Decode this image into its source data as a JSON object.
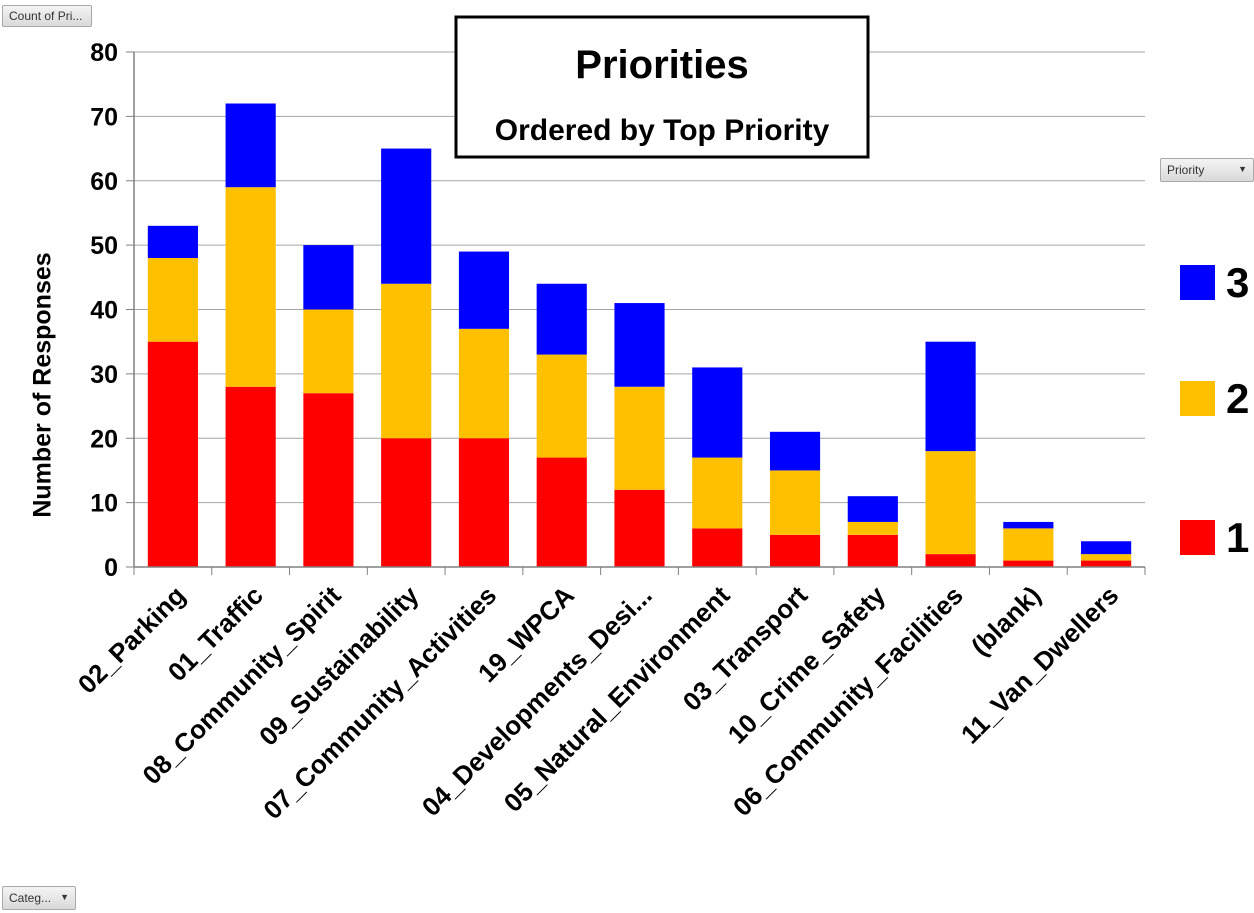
{
  "pivot_buttons": {
    "count_label": "Count of Pri...",
    "priority_label": "Priority",
    "category_label": "Categ..."
  },
  "chart_data": {
    "type": "bar",
    "stacked": true,
    "title": "Priorities",
    "subtitle": "Ordered by Top Priority",
    "xlabel": "",
    "ylabel": "Number of Responses",
    "ylim": [
      0,
      80
    ],
    "yticks": [
      0,
      10,
      20,
      30,
      40,
      50,
      60,
      70,
      80
    ],
    "grid": true,
    "legend_position": "right",
    "categories": [
      "02_Parking",
      "01_Traffic",
      "08_Community_Spirit",
      "09_Sustainability",
      "07_Community_Activities",
      "19_WPCA",
      "04_Developments_Desi...",
      "05_Natural_Environment",
      "03_Transport",
      "10_Crime_Safety",
      "06_Community_Facilities",
      "(blank)",
      "11_Van_Dwellers"
    ],
    "series": [
      {
        "name": "1",
        "color": "#ff0000",
        "values": [
          35,
          28,
          27,
          20,
          20,
          17,
          12,
          6,
          5,
          5,
          2,
          1,
          1
        ]
      },
      {
        "name": "2",
        "color": "#ffc000",
        "values": [
          13,
          31,
          13,
          24,
          17,
          16,
          16,
          11,
          10,
          2,
          16,
          5,
          1
        ]
      },
      {
        "name": "3",
        "color": "#0000ff",
        "values": [
          5,
          13,
          10,
          21,
          12,
          11,
          13,
          14,
          6,
          4,
          17,
          1,
          2
        ]
      }
    ],
    "legend_order": [
      "3",
      "2",
      "1"
    ]
  }
}
